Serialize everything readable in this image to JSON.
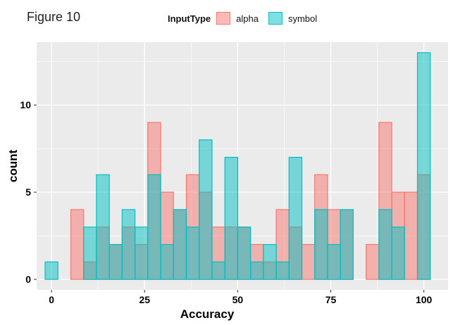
{
  "figure_label": "Figure 10",
  "legend": {
    "title": "InputType",
    "items": [
      {
        "label": "alpha",
        "fill": "#F8766D",
        "stroke": "#F8766D"
      },
      {
        "label": "symbol",
        "fill": "#00BFC4",
        "stroke": "#00BFC4"
      }
    ]
  },
  "chart_data": {
    "type": "bar",
    "subtype": "overlapping histogram",
    "xlabel": "Accuracy",
    "ylabel": "count",
    "x_ticks": [
      0,
      25,
      50,
      75,
      100
    ],
    "y_ticks": [
      0,
      5,
      10
    ],
    "xlim": [
      -4,
      106.5
    ],
    "ylim": [
      -0.6,
      13.6
    ],
    "bin_width": 3.45,
    "bin_centers": [
      0,
      3.45,
      6.9,
      10.34,
      13.79,
      17.24,
      20.69,
      24.14,
      27.59,
      31.03,
      34.48,
      37.93,
      41.38,
      44.83,
      48.28,
      51.72,
      55.17,
      58.62,
      62.07,
      65.52,
      68.97,
      72.41,
      75.86,
      79.31,
      82.76,
      86.21,
      89.66,
      93.1,
      96.55,
      100
    ],
    "series": [
      {
        "name": "alpha",
        "values": [
          0,
          0,
          4,
          1,
          3,
          2,
          3,
          2,
          9,
          5,
          4,
          6,
          5,
          3,
          3,
          3,
          2,
          1,
          4,
          3,
          2,
          6,
          4,
          4,
          0,
          2,
          9,
          5,
          5,
          6
        ]
      },
      {
        "name": "symbol",
        "values": [
          1,
          0,
          0,
          3,
          6,
          2,
          4,
          3,
          6,
          2,
          4,
          3,
          8,
          1,
          7,
          3,
          1,
          2,
          1,
          7,
          0,
          4,
          2,
          4,
          0,
          0,
          4,
          3,
          0,
          13
        ]
      }
    ],
    "grid": true,
    "legend_position": "top"
  }
}
